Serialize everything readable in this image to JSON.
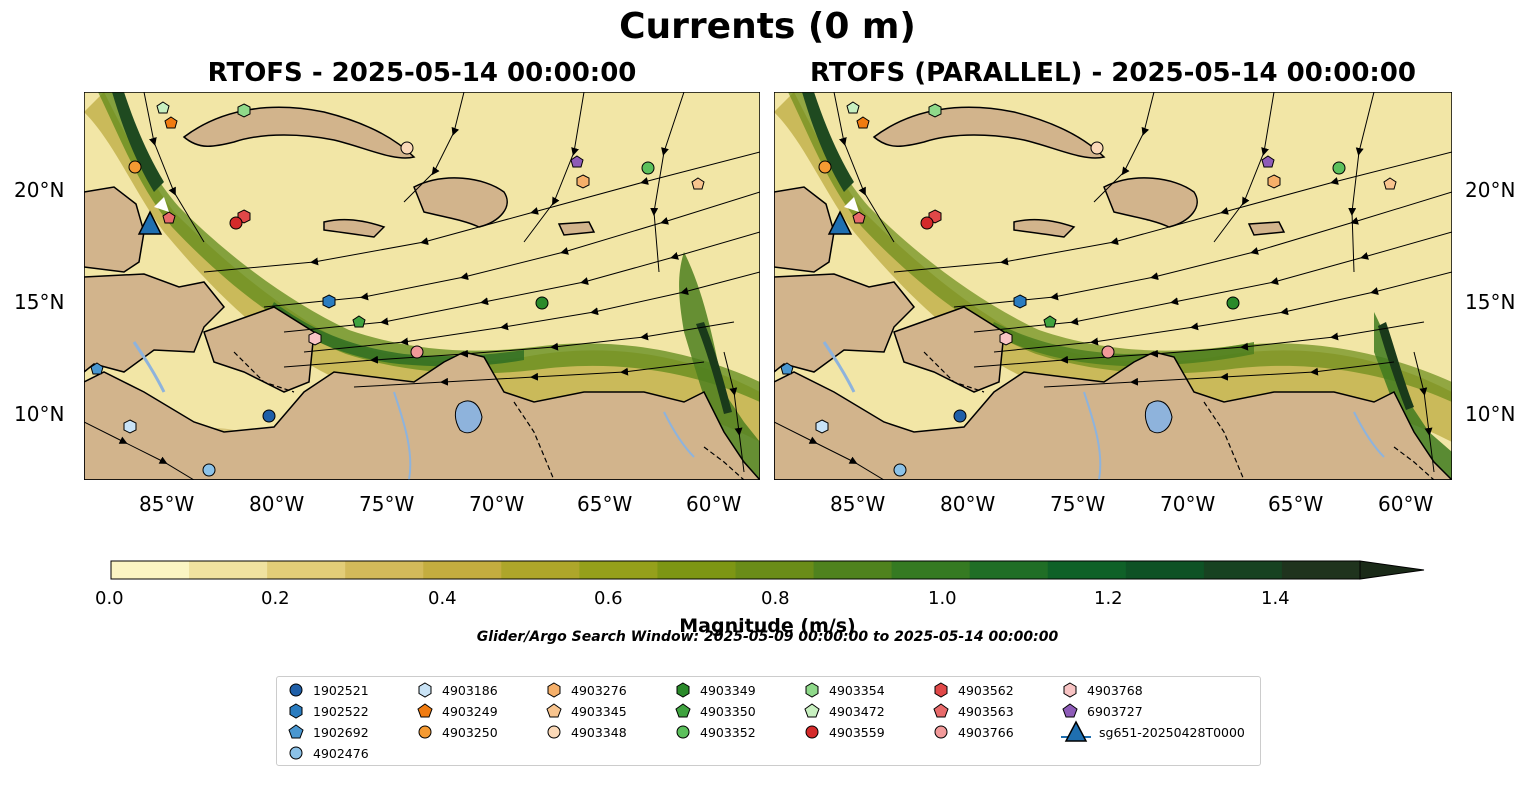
{
  "title": "Currents (0 m)",
  "panels": [
    {
      "title": "RTOFS - 2025-05-14 00:00:00"
    },
    {
      "title": "RTOFS (PARALLEL) - 2025-05-14 00:00:00"
    }
  ],
  "axes": {
    "lat_labels": [
      "20°N",
      "15°N",
      "10°N"
    ],
    "lon_labels": [
      "85°W",
      "80°W",
      "75°W",
      "70°W",
      "65°W",
      "60°W"
    ]
  },
  "colorbar": {
    "title": "Magnitude (m/s)",
    "ticks": [
      "0.0",
      "0.2",
      "0.4",
      "0.6",
      "0.8",
      "1.0",
      "1.2",
      "1.4"
    ],
    "colors": [
      "#fbf5c3",
      "#f0e2a0",
      "#e2cd78",
      "#d3ba5a",
      "#c4ad3f",
      "#aea62a",
      "#95a01b",
      "#7d9614",
      "#6a8c18",
      "#4f821e",
      "#357a22",
      "#206e26",
      "#0f6128",
      "#0e5225",
      "#174221",
      "#1f331d"
    ],
    "extend_color": "#1a2a18"
  },
  "search_window": "Glider/Argo Search Window: 2025-05-09 00:00:00 to 2025-05-14 00:00:00",
  "legend": [
    {
      "label": "1902521",
      "marker": "circle",
      "color": "#1f5fa8"
    },
    {
      "label": "1902522",
      "marker": "hexagon",
      "color": "#2a7cc0"
    },
    {
      "label": "1902692",
      "marker": "pentagon",
      "color": "#4a97d0"
    },
    {
      "label": "4902476",
      "marker": "circle",
      "color": "#8cc2e8"
    },
    {
      "label": "4903186",
      "marker": "hexagon",
      "color": "#c9e3f6"
    },
    {
      "label": "4903249",
      "marker": "pentagon",
      "color": "#f07b10"
    },
    {
      "label": "4903250",
      "marker": "circle",
      "color": "#f59a32"
    },
    {
      "label": "4903276",
      "marker": "hexagon",
      "color": "#f6b06a"
    },
    {
      "label": "4903345",
      "marker": "pentagon",
      "color": "#f8c48e"
    },
    {
      "label": "4903348",
      "marker": "circle",
      "color": "#fbd9b8"
    },
    {
      "label": "4903349",
      "marker": "hexagon",
      "color": "#2a8a2a"
    },
    {
      "label": "4903350",
      "marker": "pentagon",
      "color": "#3fa33f"
    },
    {
      "label": "4903352",
      "marker": "circle",
      "color": "#5cc05c"
    },
    {
      "label": "4903354",
      "marker": "hexagon",
      "color": "#8fd98a"
    },
    {
      "label": "4903472",
      "marker": "pentagon",
      "color": "#c8f0c0"
    },
    {
      "label": "4903559",
      "marker": "circle",
      "color": "#d42a2a"
    },
    {
      "label": "4903562",
      "marker": "hexagon",
      "color": "#e04848"
    },
    {
      "label": "4903563",
      "marker": "pentagon",
      "color": "#e86a6a"
    },
    {
      "label": "4903766",
      "marker": "circle",
      "color": "#f29a9a"
    },
    {
      "label": "4903768",
      "marker": "hexagon",
      "color": "#f8c4c4"
    },
    {
      "label": "6903727",
      "marker": "pentagon",
      "color": "#8e5cb8"
    },
    {
      "label": "sg651-20250428T0000",
      "marker": "triangle",
      "color": "#1f6fb0"
    }
  ]
}
